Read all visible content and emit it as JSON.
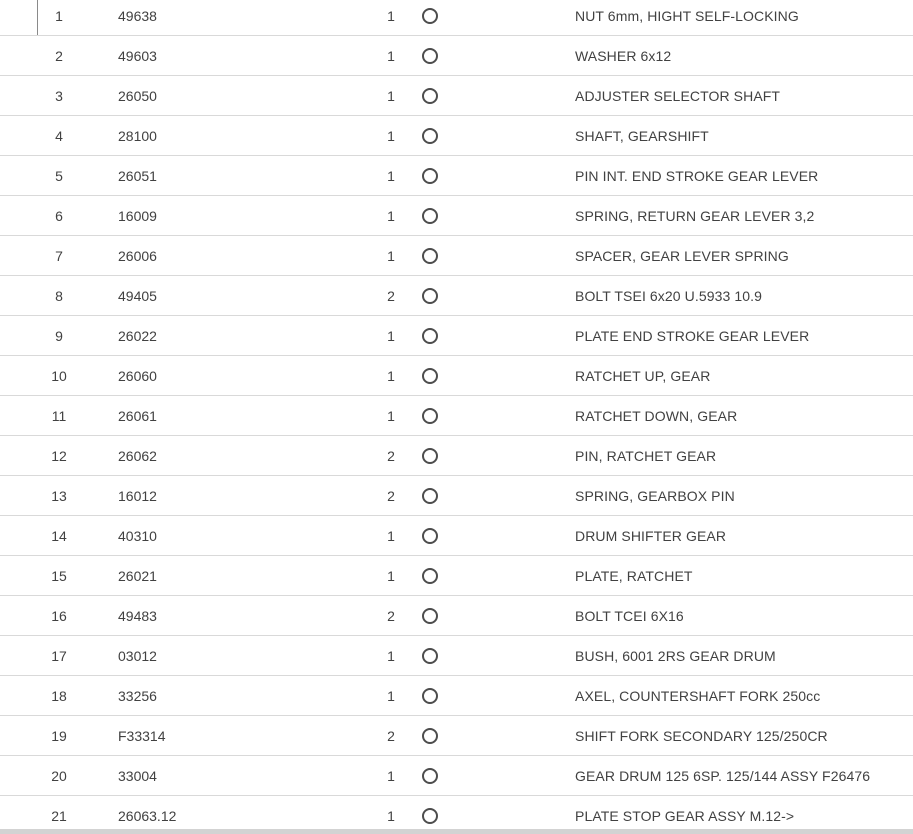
{
  "colors": {
    "row_border": "#d9d9d9",
    "text": "#414141",
    "radio_ring": "#4d4d4d",
    "bottom_band": "#d3d3d3"
  },
  "icons": {
    "row_select": "radio-circle-icon"
  },
  "table": {
    "columns": [
      "item_no",
      "part_number",
      "quantity",
      "select",
      "description"
    ],
    "rows": [
      {
        "no": "1",
        "part": "49638",
        "qty": "1",
        "desc": "NUT 6mm, HIGHT SELF-LOCKING"
      },
      {
        "no": "2",
        "part": "49603",
        "qty": "1",
        "desc": "WASHER 6x12"
      },
      {
        "no": "3",
        "part": "26050",
        "qty": "1",
        "desc": "ADJUSTER SELECTOR SHAFT"
      },
      {
        "no": "4",
        "part": "28100",
        "qty": "1",
        "desc": "SHAFT, GEARSHIFT"
      },
      {
        "no": "5",
        "part": "26051",
        "qty": "1",
        "desc": "PIN INT. END STROKE GEAR LEVER"
      },
      {
        "no": "6",
        "part": "16009",
        "qty": "1",
        "desc": "SPRING, RETURN GEAR LEVER 3,2"
      },
      {
        "no": "7",
        "part": "26006",
        "qty": "1",
        "desc": "SPACER, GEAR LEVER SPRING"
      },
      {
        "no": "8",
        "part": "49405",
        "qty": "2",
        "desc": "BOLT TSEI 6x20 U.5933 10.9"
      },
      {
        "no": "9",
        "part": "26022",
        "qty": "1",
        "desc": "PLATE END STROKE GEAR LEVER"
      },
      {
        "no": "10",
        "part": "26060",
        "qty": "1",
        "desc": "RATCHET UP, GEAR"
      },
      {
        "no": "11",
        "part": "26061",
        "qty": "1",
        "desc": "RATCHET DOWN, GEAR"
      },
      {
        "no": "12",
        "part": "26062",
        "qty": "2",
        "desc": "PIN, RATCHET GEAR"
      },
      {
        "no": "13",
        "part": "16012",
        "qty": "2",
        "desc": "SPRING, GEARBOX PIN"
      },
      {
        "no": "14",
        "part": "40310",
        "qty": "1",
        "desc": "DRUM SHIFTER GEAR"
      },
      {
        "no": "15",
        "part": "26021",
        "qty": "1",
        "desc": "PLATE, RATCHET"
      },
      {
        "no": "16",
        "part": "49483",
        "qty": "2",
        "desc": "BOLT TCEI 6X16"
      },
      {
        "no": "17",
        "part": "03012",
        "qty": "1",
        "desc": "BUSH, 6001 2RS GEAR DRUM"
      },
      {
        "no": "18",
        "part": "33256",
        "qty": "1",
        "desc": "AXEL, COUNTERSHAFT FORK 250cc"
      },
      {
        "no": "19",
        "part": "F33314",
        "qty": "2",
        "desc": "SHIFT FORK SECONDARY 125/250CR"
      },
      {
        "no": "20",
        "part": "33004",
        "qty": "1",
        "desc": "GEAR DRUM 125 6SP. 125/144 ASSY F26476"
      },
      {
        "no": "21",
        "part": "26063.12",
        "qty": "1",
        "desc": "PLATE STOP GEAR ASSY M.12-&gt;"
      }
    ]
  }
}
